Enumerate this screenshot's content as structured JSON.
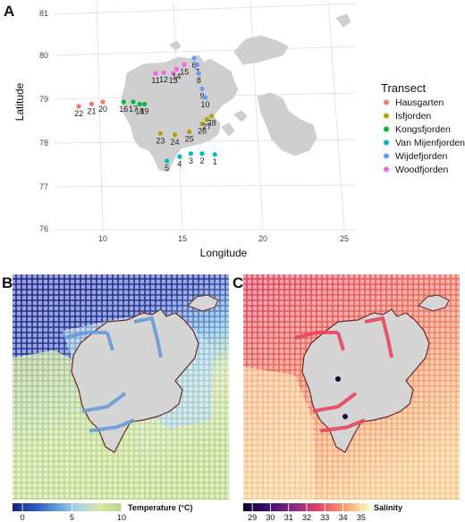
{
  "panels": {
    "a": {
      "letter": "A"
    },
    "b": {
      "letter": "B"
    },
    "c": {
      "letter": "C"
    }
  },
  "chart_data": [
    {
      "type": "scatter",
      "panel": "A",
      "title": "",
      "xlabel": "Longitude",
      "ylabel": "Latitude",
      "xlim": [
        5,
        27
      ],
      "ylim": [
        75.6,
        81.2
      ],
      "x_ticks": [
        10,
        15,
        20,
        25
      ],
      "y_ticks": [
        76,
        77,
        78,
        79,
        80,
        81
      ],
      "grid": true,
      "legend_title": "Transect",
      "legend_position": "right",
      "colors": {
        "Hausgarten": "#f8766d",
        "Isfjorden": "#b79f00",
        "Kongsfjorden": "#00ba38",
        "Van Mijenfjorden": "#00bfc4",
        "Wijdefjorden": "#619cff",
        "Woodfjorden": "#f564e3"
      },
      "series": [
        {
          "name": "Hausgarten",
          "points": [
            {
              "label": "20",
              "lon": 10.0,
              "lat": 79.0
            },
            {
              "label": "21",
              "lon": 9.3,
              "lat": 78.95
            },
            {
              "label": "22",
              "lon": 8.5,
              "lat": 78.9
            }
          ]
        },
        {
          "name": "Isfjorden",
          "points": [
            {
              "label": "23",
              "lon": 13.6,
              "lat": 78.28
            },
            {
              "label": "24",
              "lon": 14.5,
              "lat": 78.25
            },
            {
              "label": "25",
              "lon": 15.4,
              "lat": 78.32
            },
            {
              "label": "26",
              "lon": 16.2,
              "lat": 78.5
            },
            {
              "label": "27",
              "lon": 16.5,
              "lat": 78.6
            },
            {
              "label": "28",
              "lon": 16.8,
              "lat": 78.68
            }
          ]
        },
        {
          "name": "Kongsfjorden",
          "points": [
            {
              "label": "16",
              "lon": 11.3,
              "lat": 79.0
            },
            {
              "label": "17",
              "lon": 11.9,
              "lat": 79.0
            },
            {
              "label": "18",
              "lon": 12.3,
              "lat": 78.95
            },
            {
              "label": "19",
              "lon": 12.6,
              "lat": 78.95
            }
          ]
        },
        {
          "name": "Van Mijenfjorden",
          "points": [
            {
              "label": "1",
              "lon": 17.0,
              "lat": 77.8
            },
            {
              "label": "2",
              "lon": 16.2,
              "lat": 77.82
            },
            {
              "label": "3",
              "lon": 15.5,
              "lat": 77.82
            },
            {
              "label": "4",
              "lon": 14.8,
              "lat": 77.75
            },
            {
              "label": "5",
              "lon": 14.0,
              "lat": 77.65
            }
          ]
        },
        {
          "name": "Wijdefjorden",
          "points": [
            {
              "label": "6",
              "lon": 15.7,
              "lat": 80.0
            },
            {
              "label": "7",
              "lon": 15.9,
              "lat": 79.85
            },
            {
              "label": "8",
              "lon": 16.0,
              "lat": 79.65
            },
            {
              "label": "9",
              "lon": 16.2,
              "lat": 79.3
            },
            {
              "label": "10",
              "lon": 16.4,
              "lat": 79.1
            }
          ]
        },
        {
          "name": "Woodfjorden",
          "points": [
            {
              "label": "11",
              "lon": 13.3,
              "lat": 79.65
            },
            {
              "label": "12",
              "lon": 13.8,
              "lat": 79.67
            },
            {
              "label": "13",
              "lon": 14.4,
              "lat": 79.65
            },
            {
              "label": "14",
              "lon": 14.6,
              "lat": 79.75
            },
            {
              "label": "15",
              "lon": 15.1,
              "lat": 79.85
            }
          ]
        }
      ]
    },
    {
      "type": "heatmap",
      "panel": "B",
      "variable": "Temperature (°C)",
      "colorbar_ticks": [
        0,
        5,
        10
      ],
      "colorbar_range": [
        -1,
        10
      ],
      "colorbar_colors": [
        "#14217a",
        "#2f55b8",
        "#5e9bd6",
        "#a8d4e6",
        "#d8e4a8",
        "#bcd98a"
      ],
      "colorbar_position": "bottom"
    },
    {
      "type": "heatmap",
      "panel": "C",
      "variable": "Salinity",
      "colorbar_ticks": [
        29,
        30,
        31,
        32,
        33,
        34,
        35
      ],
      "colorbar_range": [
        28.5,
        35.5
      ],
      "colorbar_colors": [
        "#0d0829",
        "#3b0f70",
        "#8c2981",
        "#de4968",
        "#fe9f6d",
        "#fcfdbf"
      ],
      "colorbar_position": "bottom"
    }
  ]
}
